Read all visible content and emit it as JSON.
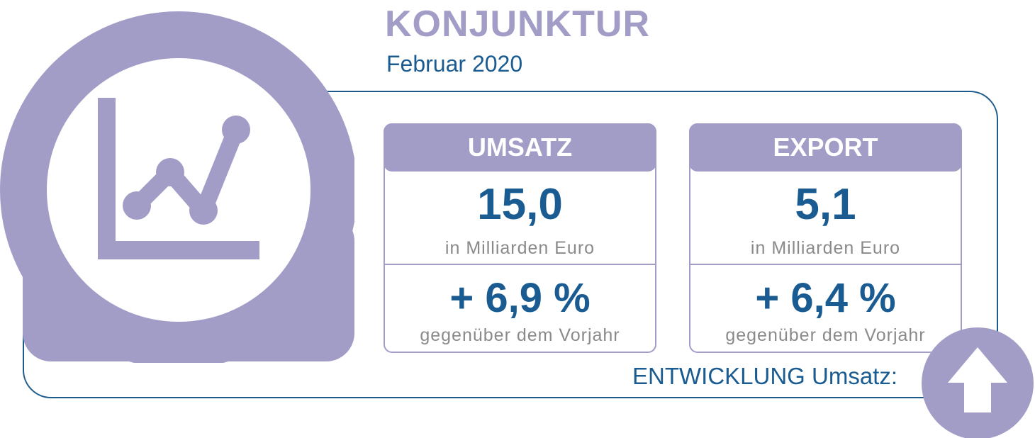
{
  "header": {
    "title": "KONJUNKTUR",
    "subtitle": "Februar 2020"
  },
  "colors": {
    "accent": "#a29dc7",
    "text_primary": "#1a5c91",
    "text_muted": "#8a8a8a",
    "frame": "#1d5b8c"
  },
  "icons": {
    "badge": "line-chart-icon",
    "trend": "arrow-up-icon"
  },
  "cards": [
    {
      "title": "UMSATZ",
      "value": "15,0",
      "unit": "in Milliarden Euro",
      "change": "+ 6,9 %",
      "change_label": "gegenüber dem Vorjahr"
    },
    {
      "title": "EXPORT",
      "value": "5,1",
      "unit": "in Milliarden Euro",
      "change": "+ 6,4 %",
      "change_label": "gegenüber dem Vorjahr"
    }
  ],
  "trend": {
    "label": "ENTWICKLUNG Umsatz:",
    "direction": "up"
  }
}
